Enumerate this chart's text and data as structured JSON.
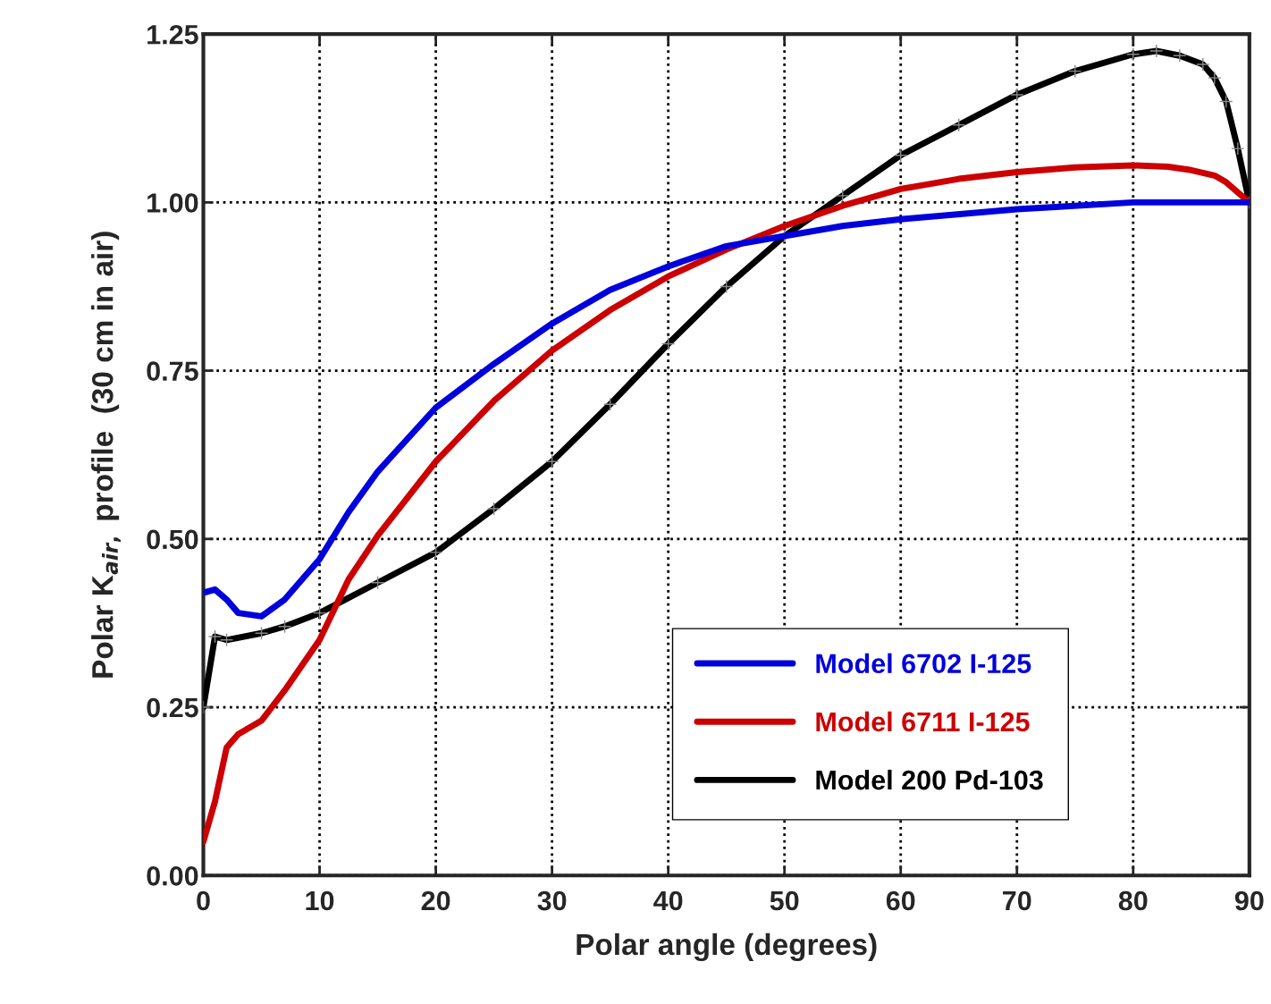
{
  "chart_data": {
    "type": "line",
    "xlabel": "Polar angle (degrees)",
    "ylabel": "Polar K$_{air,}$ profile  (30 cm in air)",
    "xlim": [
      0,
      90
    ],
    "xticks": [
      0,
      10,
      20,
      30,
      40,
      50,
      60,
      70,
      80,
      90
    ],
    "ylim": [
      0,
      1.25
    ],
    "yticks": [
      {
        "value": 0,
        "label": "0.00"
      },
      {
        "value": 0.25,
        "label": "0.25"
      },
      {
        "value": 0.5,
        "label": "0.50"
      },
      {
        "value": 0.75,
        "label": "0.75"
      },
      {
        "value": 1.0,
        "label": "1.00"
      },
      {
        "value": 1.25,
        "label": "1.25"
      }
    ],
    "grid": true,
    "legend": "bottom right",
    "line_style": "solid",
    "series": [
      {
        "name": "Model 6702 I-125",
        "color": "#0000dd",
        "marker": "none",
        "x": [
          0,
          1,
          2,
          3,
          5,
          7,
          10,
          12.5,
          15,
          20,
          25,
          30,
          35,
          40,
          45,
          50,
          55,
          60,
          70,
          73,
          80,
          85,
          88,
          90
        ],
        "values": [
          0.42,
          0.425,
          0.41,
          0.39,
          0.385,
          0.41,
          0.47,
          0.54,
          0.6,
          0.695,
          0.76,
          0.82,
          0.87,
          0.905,
          0.935,
          0.95,
          0.965,
          0.975,
          0.99,
          0.993,
          1.0,
          1.0,
          1.0,
          1.0
        ]
      },
      {
        "name": "Model 6711 I-125",
        "color": "#cc0000",
        "marker": "none",
        "x": [
          0,
          1,
          2,
          3,
          5,
          7,
          10,
          12.5,
          15,
          20,
          25,
          30,
          35,
          40,
          45,
          50,
          55,
          60,
          65,
          70,
          75,
          80,
          83,
          85,
          87,
          88,
          89,
          90
        ],
        "values": [
          0.05,
          0.11,
          0.19,
          0.21,
          0.23,
          0.275,
          0.35,
          0.44,
          0.505,
          0.615,
          0.705,
          0.78,
          0.84,
          0.89,
          0.93,
          0.965,
          0.995,
          1.02,
          1.035,
          1.045,
          1.052,
          1.055,
          1.053,
          1.048,
          1.04,
          1.03,
          1.015,
          1.0
        ]
      },
      {
        "name": "Model 200 Pd-103",
        "color": "#000000",
        "marker": "cross",
        "x": [
          0,
          1,
          2,
          5,
          7,
          10,
          15,
          20,
          25,
          30,
          35,
          40,
          45,
          50,
          55,
          60,
          65,
          70,
          75,
          80,
          82,
          84,
          86,
          87,
          88,
          89,
          90
        ],
        "values": [
          0.25,
          0.355,
          0.35,
          0.36,
          0.37,
          0.39,
          0.435,
          0.48,
          0.545,
          0.615,
          0.7,
          0.79,
          0.875,
          0.95,
          1.01,
          1.07,
          1.115,
          1.16,
          1.195,
          1.22,
          1.225,
          1.218,
          1.205,
          1.185,
          1.15,
          1.08,
          1.0
        ]
      }
    ]
  }
}
